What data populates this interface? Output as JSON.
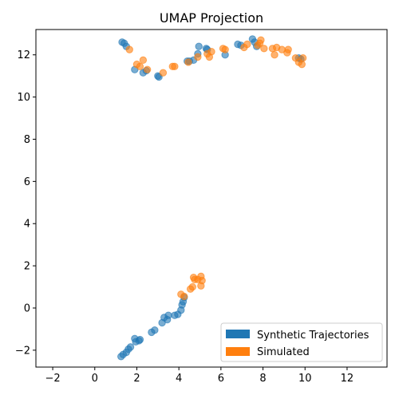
{
  "chart_data": {
    "type": "scatter",
    "title": "UMAP Projection",
    "xlabel": "",
    "ylabel": "",
    "xlim": [
      -2.8,
      13.9
    ],
    "ylim": [
      -2.8,
      13.2
    ],
    "xticks": [
      -2,
      0,
      2,
      4,
      6,
      8,
      10,
      12
    ],
    "yticks": [
      -2,
      0,
      2,
      4,
      6,
      8,
      10,
      12
    ],
    "grid": false,
    "legend_position": "lower-right",
    "series": [
      {
        "name": "Synthetic Trajectories",
        "color": "#1f77b4",
        "points": [
          [
            1.3,
            12.6
          ],
          [
            1.4,
            12.55
          ],
          [
            1.5,
            12.4
          ],
          [
            1.9,
            11.3
          ],
          [
            2.3,
            11.15
          ],
          [
            2.45,
            11.25
          ],
          [
            3.0,
            11.0
          ],
          [
            3.05,
            10.95
          ],
          [
            4.4,
            11.7
          ],
          [
            4.5,
            11.7
          ],
          [
            4.7,
            11.75
          ],
          [
            4.9,
            12.05
          ],
          [
            4.95,
            12.4
          ],
          [
            5.3,
            12.3
          ],
          [
            5.35,
            12.25
          ],
          [
            6.2,
            12.0
          ],
          [
            6.8,
            12.5
          ],
          [
            6.95,
            12.45
          ],
          [
            7.5,
            12.75
          ],
          [
            7.6,
            12.6
          ],
          [
            7.7,
            12.4
          ],
          [
            9.7,
            11.85
          ],
          [
            9.8,
            11.8
          ],
          [
            1.25,
            -2.3
          ],
          [
            1.35,
            -2.2
          ],
          [
            1.5,
            -2.1
          ],
          [
            1.6,
            -1.95
          ],
          [
            1.7,
            -1.85
          ],
          [
            1.9,
            -1.45
          ],
          [
            1.95,
            -1.6
          ],
          [
            2.1,
            -1.55
          ],
          [
            2.15,
            -1.5
          ],
          [
            2.7,
            -1.15
          ],
          [
            2.85,
            -1.05
          ],
          [
            3.2,
            -0.7
          ],
          [
            3.3,
            -0.45
          ],
          [
            3.45,
            -0.55
          ],
          [
            3.5,
            -0.35
          ],
          [
            3.8,
            -0.35
          ],
          [
            3.95,
            -0.3
          ],
          [
            4.1,
            -0.1
          ],
          [
            4.15,
            0.15
          ],
          [
            4.2,
            0.3
          ],
          [
            4.25,
            0.5
          ]
        ]
      },
      {
        "name": "Simulated",
        "color": "#ff7f0e",
        "points": [
          [
            1.65,
            12.25
          ],
          [
            2.0,
            11.55
          ],
          [
            2.15,
            11.45
          ],
          [
            2.3,
            11.75
          ],
          [
            2.5,
            11.3
          ],
          [
            3.25,
            11.15
          ],
          [
            3.7,
            11.45
          ],
          [
            3.8,
            11.45
          ],
          [
            4.45,
            11.65
          ],
          [
            4.9,
            11.9
          ],
          [
            5.35,
            12.05
          ],
          [
            5.45,
            11.9
          ],
          [
            5.55,
            12.15
          ],
          [
            6.1,
            12.3
          ],
          [
            6.2,
            12.25
          ],
          [
            7.1,
            12.35
          ],
          [
            7.25,
            12.5
          ],
          [
            7.75,
            12.45
          ],
          [
            7.85,
            12.55
          ],
          [
            7.9,
            12.7
          ],
          [
            8.05,
            12.3
          ],
          [
            8.45,
            12.3
          ],
          [
            8.55,
            12.0
          ],
          [
            8.65,
            12.35
          ],
          [
            8.9,
            12.25
          ],
          [
            9.15,
            12.1
          ],
          [
            9.2,
            12.25
          ],
          [
            9.55,
            11.85
          ],
          [
            9.7,
            11.65
          ],
          [
            9.85,
            11.55
          ],
          [
            9.9,
            11.85
          ],
          [
            4.1,
            0.65
          ],
          [
            4.25,
            0.55
          ],
          [
            4.55,
            0.9
          ],
          [
            4.65,
            1.0
          ],
          [
            4.7,
            1.45
          ],
          [
            4.75,
            1.35
          ],
          [
            4.9,
            1.35
          ],
          [
            5.05,
            1.5
          ],
          [
            5.05,
            1.05
          ],
          [
            5.1,
            1.3
          ]
        ]
      }
    ]
  }
}
